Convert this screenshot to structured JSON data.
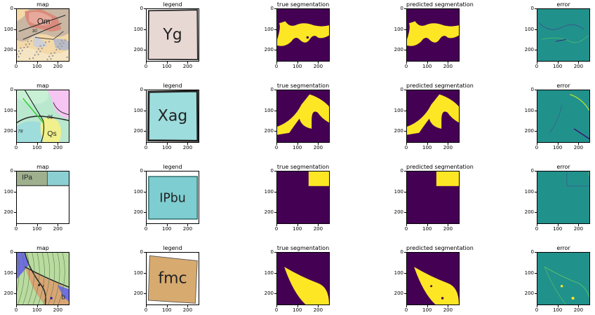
{
  "titles": {
    "map": "map",
    "legend": "legend",
    "true_seg": "true segmentation",
    "pred_seg": "predicted segmentation",
    "error": "error"
  },
  "ticks": {
    "x": [
      "0",
      "100",
      "200"
    ],
    "y": [
      "0",
      "100",
      "200"
    ]
  },
  "colors": {
    "segmentation_bg": "#440154",
    "segmentation_fg": "#fde725",
    "error_bg": "#21918c"
  },
  "rows": [
    {
      "map_labels": [
        "Om",
        "30"
      ],
      "legend_label": "Yg",
      "legend_fill": "#e8d8d4"
    },
    {
      "map_labels": [
        "85",
        "Qs",
        "78"
      ],
      "legend_label": "Xag",
      "legend_fill": "#9ddddd"
    },
    {
      "map_labels": [
        "IPa"
      ],
      "legend_label": "IPbu",
      "legend_fill": "#7ecdd0"
    },
    {
      "map_labels": [
        "v",
        "b"
      ],
      "legend_label": "fmc",
      "legend_fill": "#d7aa70"
    }
  ]
}
